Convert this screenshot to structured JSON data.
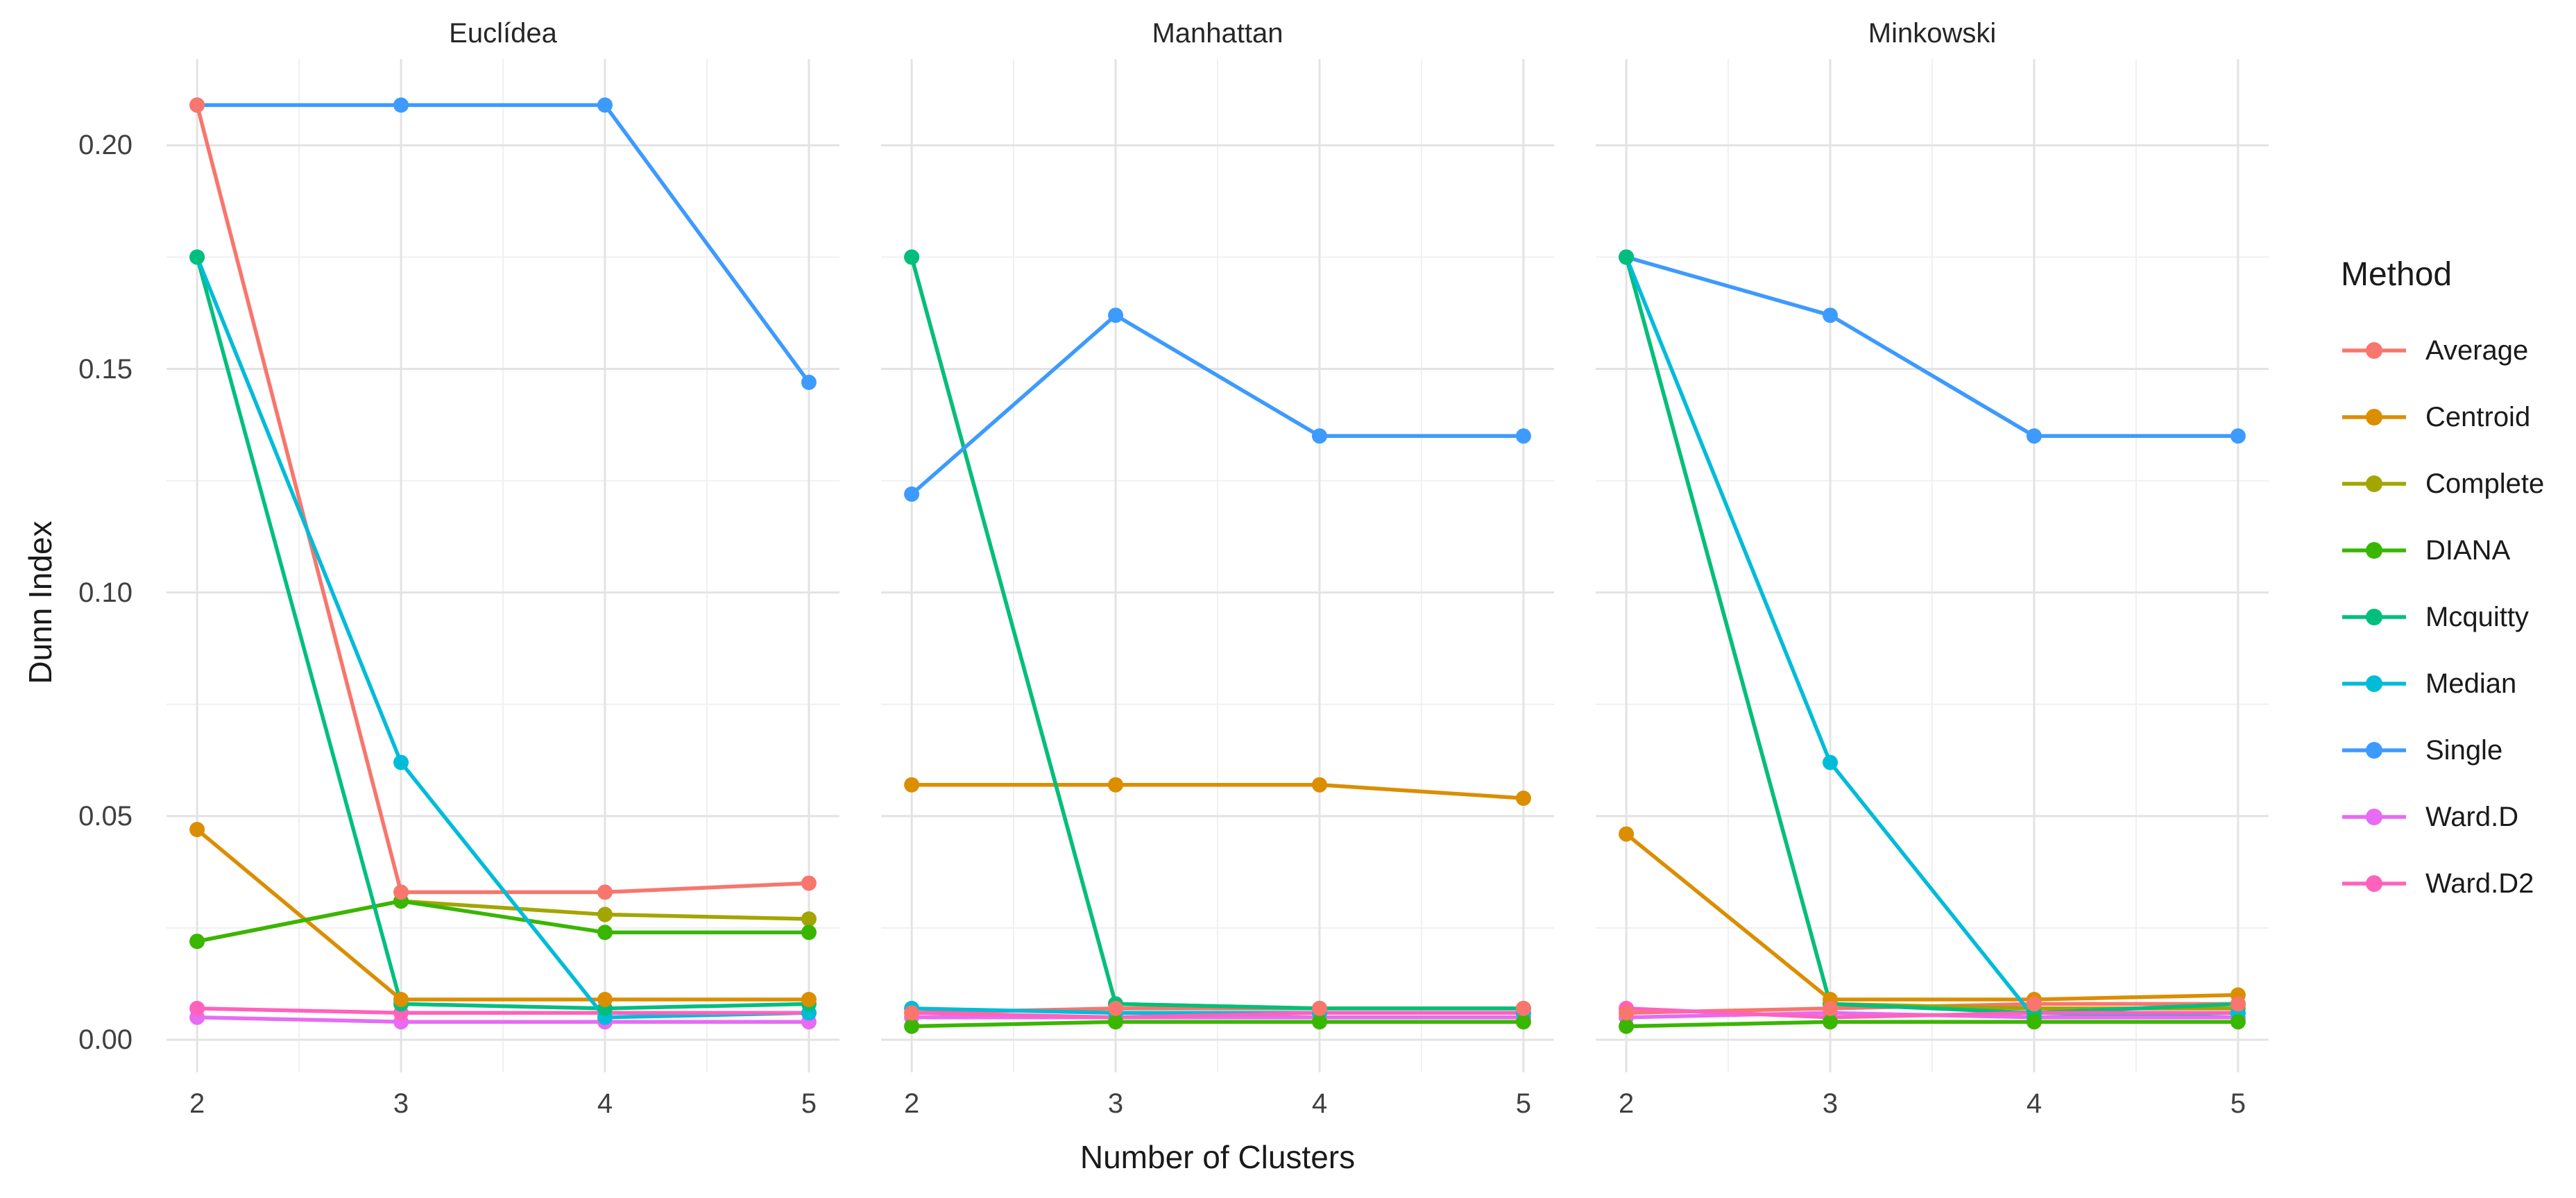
{
  "chart_data": {
    "type": "line",
    "title": "",
    "xlabel": "Number of Clusters",
    "ylabel": "Dunn Index",
    "x": [
      2,
      3,
      4,
      5
    ],
    "x_tick_labels": [
      "2",
      "3",
      "4",
      "5"
    ],
    "y_ticks": [
      0.0,
      0.05,
      0.1,
      0.15,
      0.2
    ],
    "y_tick_labels": [
      "0.00",
      "0.05",
      "0.10",
      "0.15",
      "0.20"
    ],
    "xlim": [
      1.85,
      5.15
    ],
    "ylim": [
      -0.0073,
      0.2193
    ],
    "grid": "major+minor",
    "legend_position": "right",
    "legend": {
      "title": "Method"
    },
    "methods": [
      {
        "name": "Average",
        "color": "#F8766D"
      },
      {
        "name": "Centroid",
        "color": "#DB8E00"
      },
      {
        "name": "Complete",
        "color": "#A3A500"
      },
      {
        "name": "DIANA",
        "color": "#39B600"
      },
      {
        "name": "Mcquitty",
        "color": "#00BF7D"
      },
      {
        "name": "Median",
        "color": "#00BCD8"
      },
      {
        "name": "Single",
        "color": "#3D9AFE"
      },
      {
        "name": "Ward.D",
        "color": "#E76BF3"
      },
      {
        "name": "Ward.D2",
        "color": "#FF62BC"
      }
    ],
    "facets": [
      {
        "title": "Euclídea",
        "values": {
          "Average": [
            0.209,
            0.033,
            0.033,
            0.035
          ],
          "Centroid": [
            0.047,
            0.009,
            0.009,
            0.009
          ],
          "Complete": [
            0.022,
            0.031,
            0.028,
            0.027
          ],
          "DIANA": [
            0.022,
            0.031,
            0.024,
            0.024
          ],
          "Mcquitty": [
            0.175,
            0.008,
            0.007,
            0.008
          ],
          "Median": [
            0.175,
            0.062,
            0.005,
            0.006
          ],
          "Single": [
            0.209,
            0.209,
            0.209,
            0.147
          ],
          "Ward.D": [
            0.005,
            0.004,
            0.004,
            0.004
          ],
          "Ward.D2": [
            0.007,
            0.006,
            0.006,
            0.006
          ]
        }
      },
      {
        "title": "Manhattan",
        "values": {
          "Average": [
            0.006,
            0.007,
            0.007,
            0.007
          ],
          "Centroid": [
            0.057,
            0.057,
            0.057,
            0.054
          ],
          "Complete": [
            0.175,
            0.008,
            0.007,
            0.007
          ],
          "DIANA": [
            0.003,
            0.004,
            0.004,
            0.004
          ],
          "Mcquitty": [
            0.175,
            0.008,
            0.007,
            0.007
          ],
          "Median": [
            0.007,
            0.006,
            0.006,
            0.006
          ],
          "Single": [
            0.122,
            0.162,
            0.135,
            0.135
          ],
          "Ward.D": [
            0.005,
            0.005,
            0.005,
            0.005
          ],
          "Ward.D2": [
            0.006,
            0.005,
            0.006,
            0.006
          ]
        }
      },
      {
        "title": "Minkowski",
        "values": {
          "Average": [
            0.006,
            0.007,
            0.008,
            0.008
          ],
          "Centroid": [
            0.046,
            0.009,
            0.009,
            0.01
          ],
          "Complete": [
            0.175,
            0.008,
            0.007,
            0.007
          ],
          "DIANA": [
            0.003,
            0.004,
            0.004,
            0.004
          ],
          "Mcquitty": [
            0.175,
            0.008,
            0.006,
            0.008
          ],
          "Median": [
            0.175,
            0.062,
            0.005,
            0.006
          ],
          "Single": [
            0.175,
            0.162,
            0.135,
            0.135
          ],
          "Ward.D": [
            0.005,
            0.006,
            0.005,
            0.005
          ],
          "Ward.D2": [
            0.007,
            0.005,
            0.006,
            0.006
          ]
        }
      }
    ]
  },
  "colors": {
    "background": "#FFFFFF",
    "grid_major": "#E3E3E3",
    "grid_minor": "#F0F0F0",
    "tick_text": "#404040",
    "title_text": "#1A1A1A"
  }
}
